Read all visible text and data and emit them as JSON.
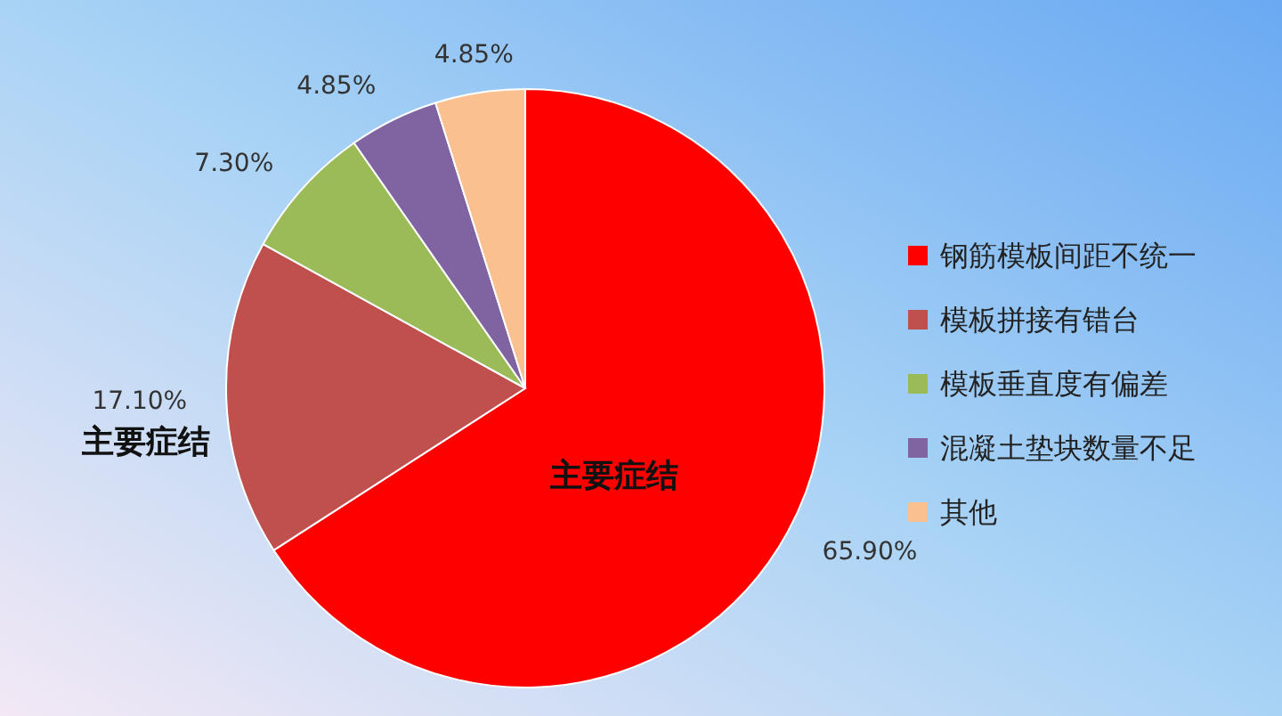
{
  "chart_data": {
    "type": "pie",
    "categories": [
      "钢筋模板间距不统一",
      "模板拼接有错台",
      "模板垂直度有偏差",
      "混凝土垫块数量不足",
      "其他"
    ],
    "values": [
      65.9,
      17.1,
      7.3,
      4.85,
      4.85
    ],
    "value_labels": [
      "65.90%",
      "17.10%",
      "7.30%",
      "4.85%",
      "4.85%"
    ],
    "colors": [
      "#ff0000",
      "#c0504d",
      "#9bbb59",
      "#8064a2",
      "#fac090"
    ],
    "annotations": [
      "主要症结",
      "主要症结"
    ],
    "legend": "right"
  }
}
